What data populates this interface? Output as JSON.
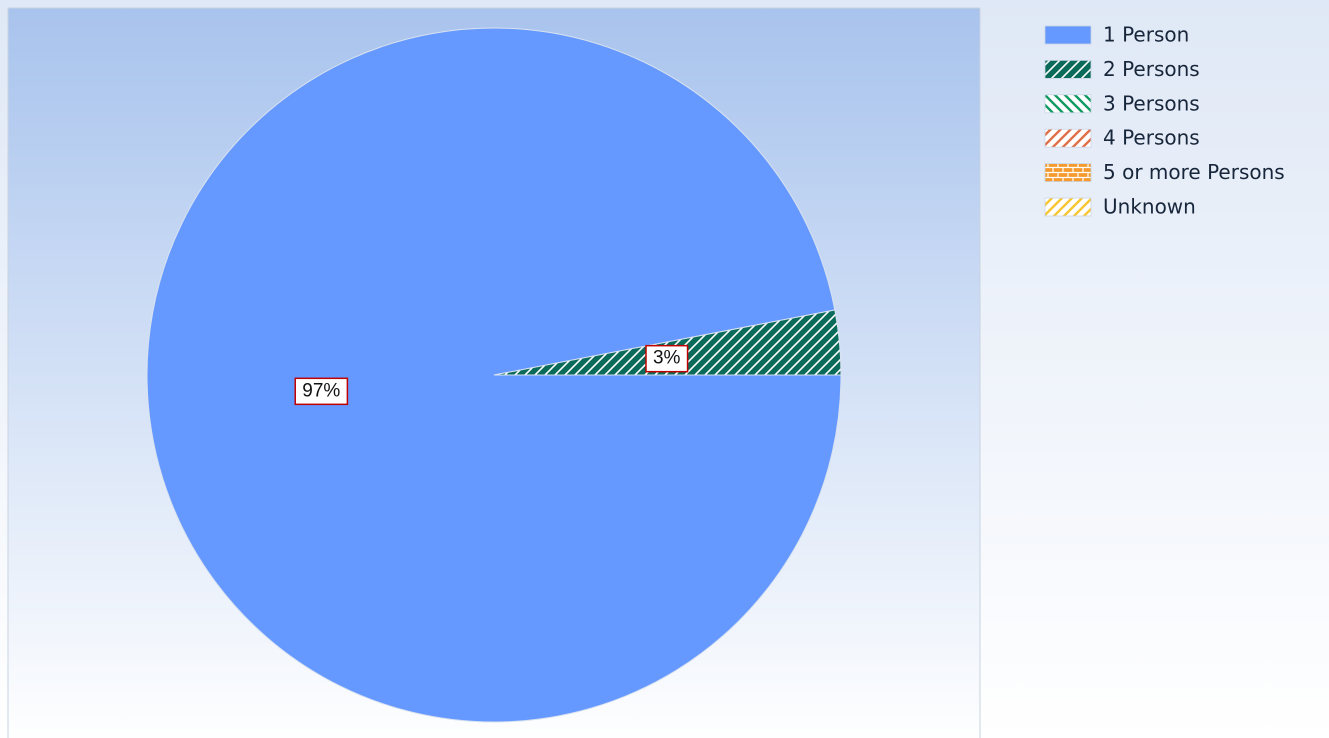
{
  "chart_data": {
    "type": "pie",
    "categories": [
      "1 Person",
      "2 Persons",
      "3 Persons",
      "4 Persons",
      "5 or more Persons",
      "Unknown"
    ],
    "values": [
      97,
      3,
      0,
      0,
      0,
      0
    ],
    "value_labels": [
      "97%",
      "3%",
      null,
      null,
      null,
      null
    ],
    "colors": [
      "#6699ff",
      "#0b6b5a",
      "#139a63",
      "#e0704a",
      "#f59a2c",
      "#f7c634"
    ],
    "legend": "right"
  }
}
